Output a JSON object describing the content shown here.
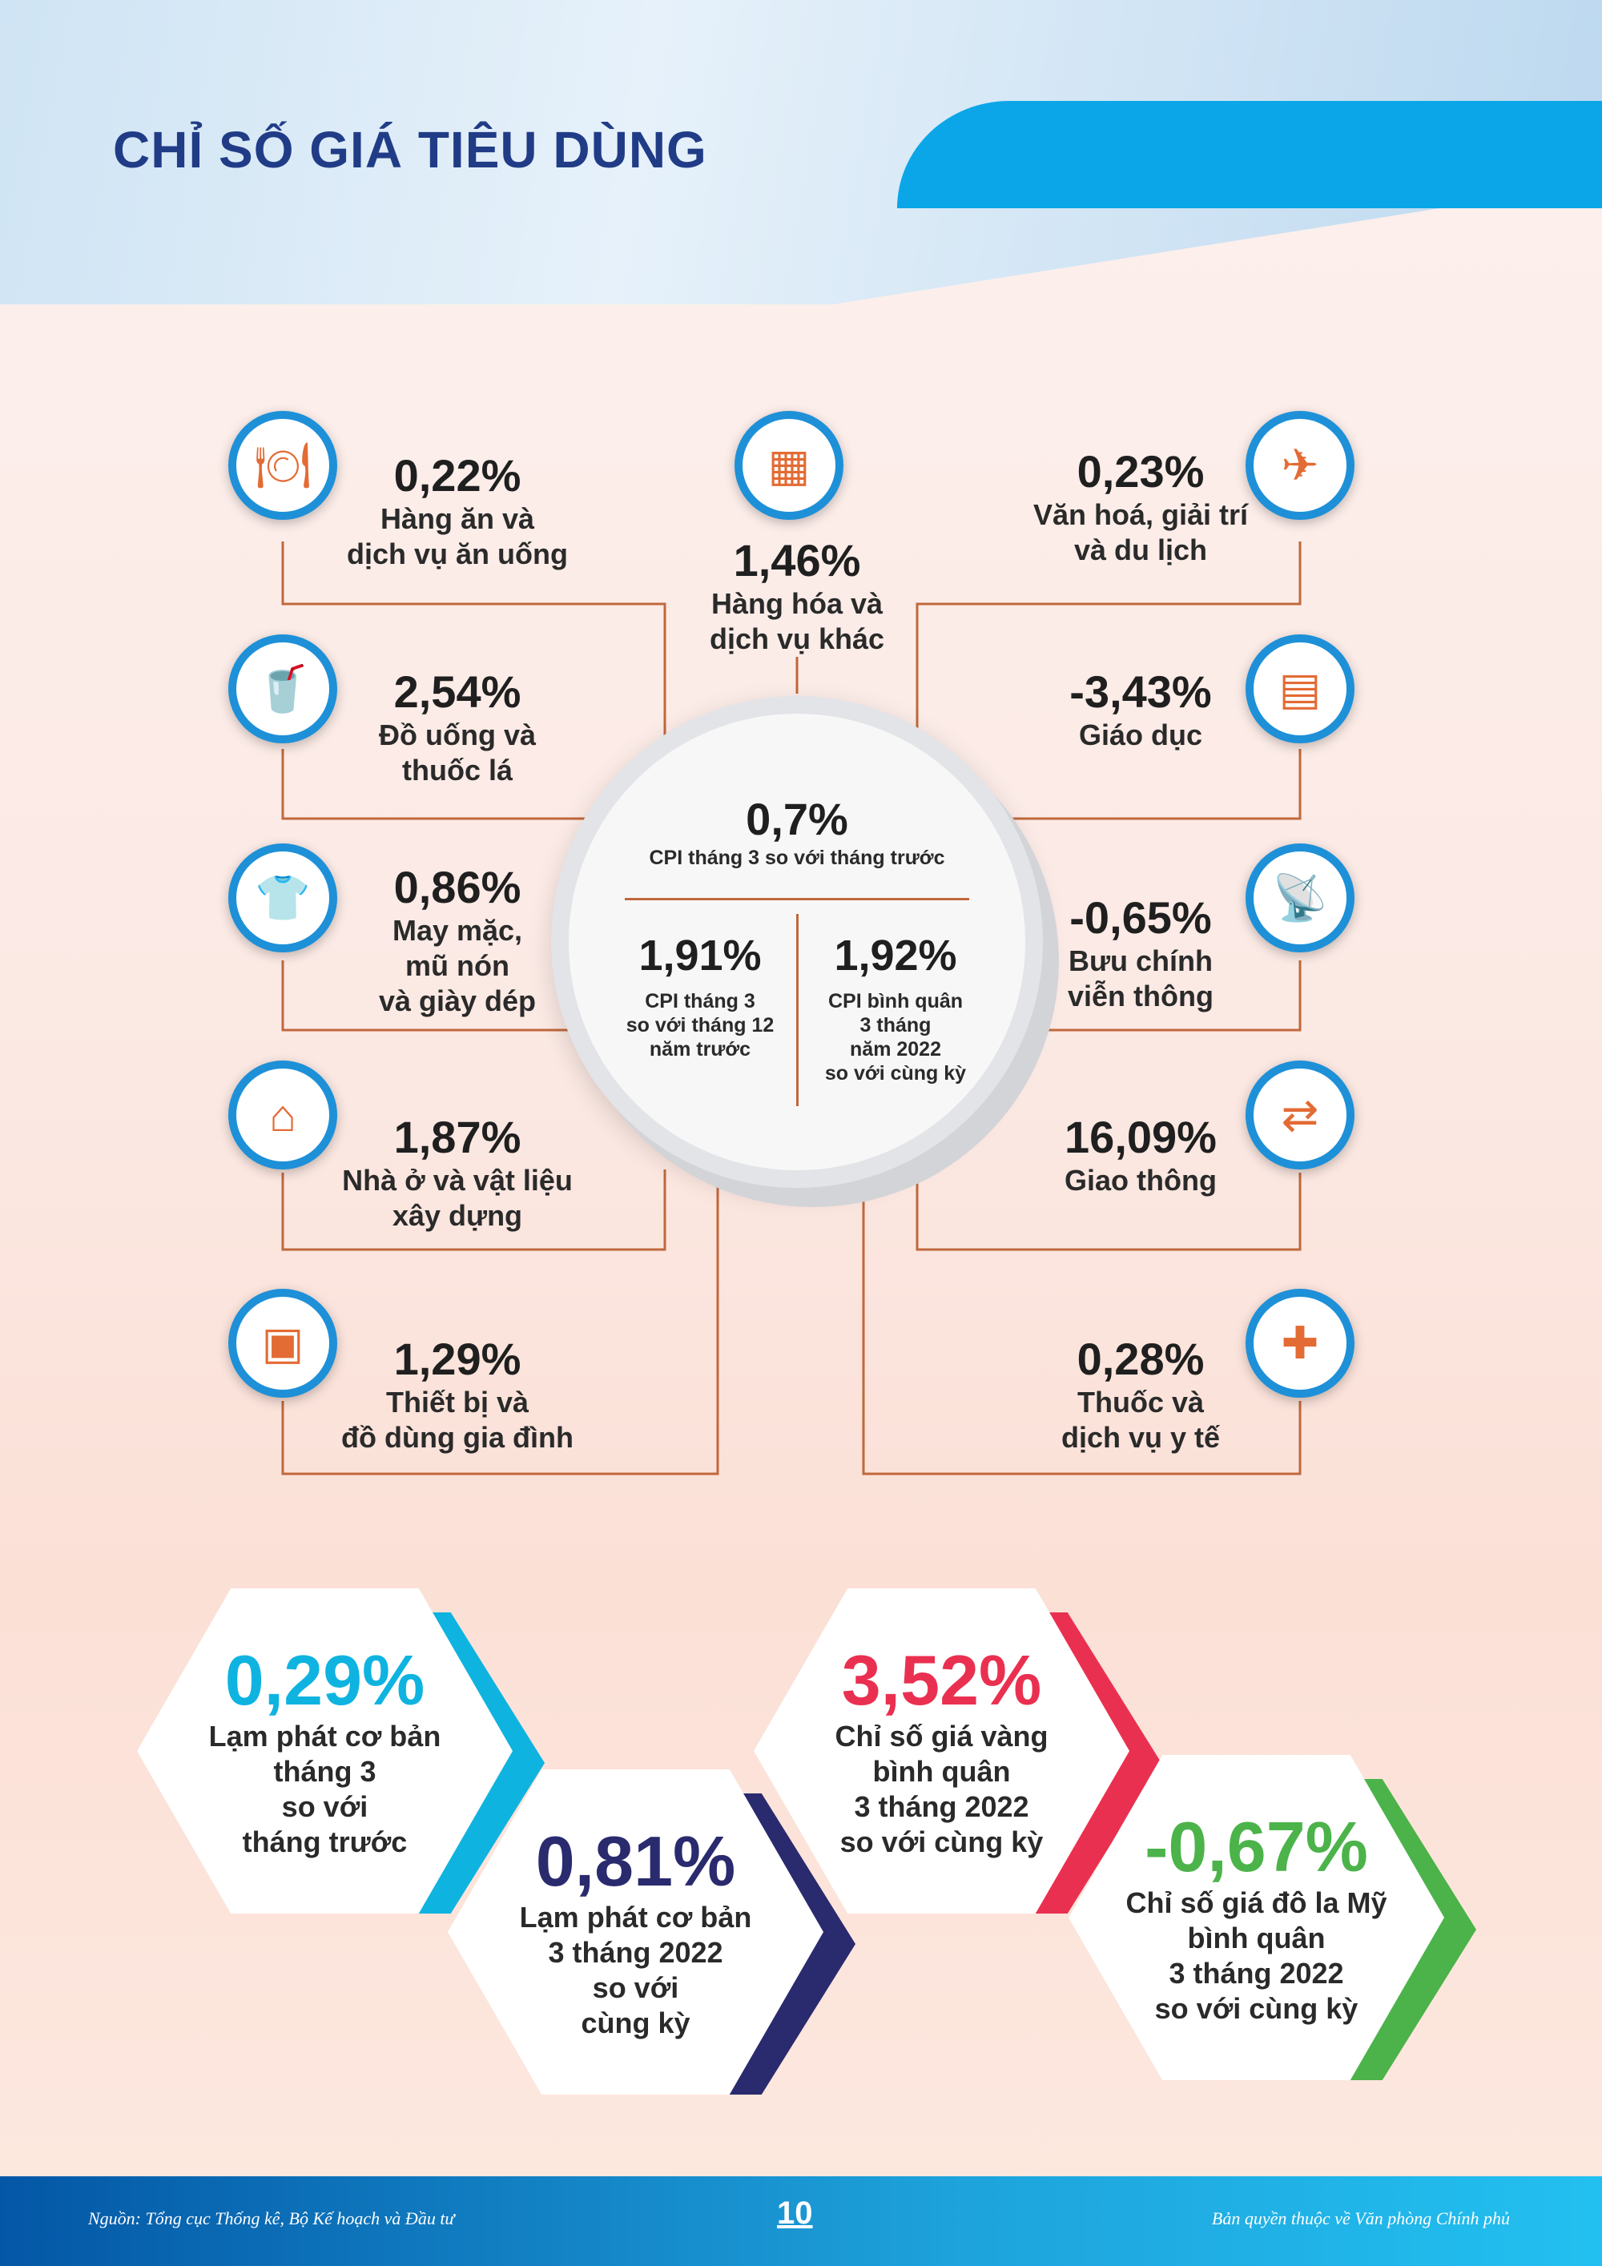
{
  "title": "CHỈ SỐ GIÁ TIÊU DÙNG",
  "colors": {
    "icon_ring": "#1e90d8",
    "icon": "#e36b34",
    "connector": "#c0683c",
    "cyan": "#0fb3e0",
    "navy": "#2a2a6e",
    "red": "#ea3050",
    "green": "#4bb34a"
  },
  "categories": [
    {
      "value": "0,22%",
      "label": "Hàng ăn và\ndịch vụ ăn uống",
      "icon": "food-tray-icon"
    },
    {
      "value": "2,54%",
      "label": "Đồ uống và\nthuốc lá",
      "icon": "drinks-icon"
    },
    {
      "value": "0,86%",
      "label": "May mặc,\nmũ nón\nvà giày dép",
      "icon": "clothing-tag-icon"
    },
    {
      "value": "1,87%",
      "label": "Nhà ở và vật liệu\nxây dựng",
      "icon": "house-icon"
    },
    {
      "value": "1,29%",
      "label": "Thiết bị và\nđồ dùng gia đình",
      "icon": "appliance-icon"
    },
    {
      "value": "1,46%",
      "label": "Hàng hóa và\ndịch vụ khác",
      "icon": "boxes-icon"
    },
    {
      "value": "0,23%",
      "label": "Văn hoá, giải trí\nvà du lịch",
      "icon": "globe-plane-icon"
    },
    {
      "value": "-3,43%",
      "label": "Giáo dục",
      "icon": "book-icon"
    },
    {
      "value": "-0,65%",
      "label": "Bưu chính\nviễn thông",
      "icon": "satellite-dish-icon"
    },
    {
      "value": "16,09%",
      "label": "Giao thông",
      "icon": "transport-arrows-icon"
    },
    {
      "value": "0,28%",
      "label": "Thuốc và\ndịch vụ y tế",
      "icon": "medical-kit-icon"
    }
  ],
  "center": {
    "main": {
      "value": "0,7%",
      "label": "CPI tháng 3 so với tháng trước"
    },
    "left": {
      "value": "1,91%",
      "label": "CPI tháng 3\nso với tháng 12\nnăm trước"
    },
    "right": {
      "value": "1,92%",
      "label": "CPI bình quân\n3 tháng\nnăm 2022\nso với cùng kỳ"
    }
  },
  "highlights": [
    {
      "value": "0,29%",
      "label": "Lạm phát cơ bản\ntháng 3\nso với\ntháng trước"
    },
    {
      "value": "0,81%",
      "label": "Lạm phát cơ bản\n3 tháng 2022\nso với\ncùng kỳ"
    },
    {
      "value": "3,52%",
      "label": "Chỉ số giá vàng\nbình quân\n3 tháng 2022\nso với cùng kỳ"
    },
    {
      "value": "-0,67%",
      "label": "Chỉ số giá đô la Mỹ\nbình quân\n3 tháng 2022\nso với cùng kỳ"
    }
  ],
  "footer": {
    "source": "Nguồn: Tổng cục Thống kê, Bộ Kế hoạch và Đầu tư",
    "page": "10",
    "copyright": "Bản quyền thuộc về Văn phòng Chính phủ"
  }
}
